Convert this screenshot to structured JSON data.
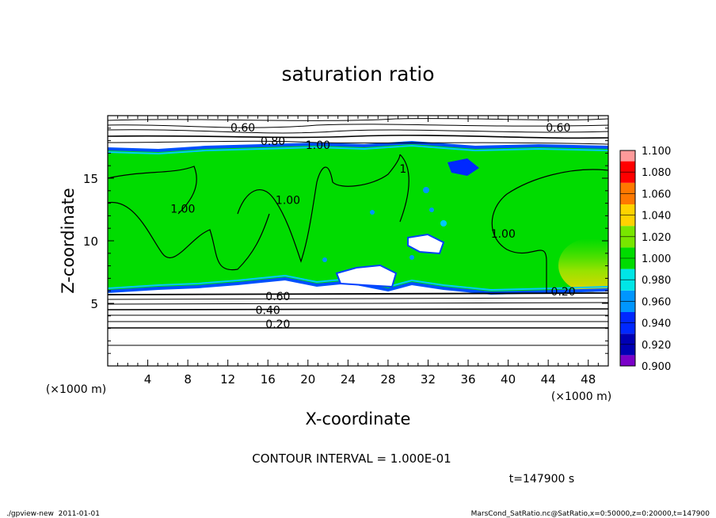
{
  "chart_data": {
    "type": "heatmap",
    "title": "saturation ratio",
    "xlabel": "X-coordinate",
    "ylabel": "Z-coordinate",
    "x_unit": "(×1000 m)",
    "y_unit": "(×1000 m)",
    "xlim": [
      0,
      50
    ],
    "ylim": [
      0,
      20
    ],
    "x_ticks": [
      "4",
      "8",
      "12",
      "16",
      "20",
      "24",
      "28",
      "32",
      "36",
      "40",
      "44",
      "48"
    ],
    "y_ticks": [
      "5",
      "10",
      "15"
    ],
    "colorbar": {
      "levels": [
        "0.900",
        "0.920",
        "0.940",
        "0.960",
        "0.980",
        "1.000",
        "1.020",
        "1.040",
        "1.060",
        "1.080",
        "1.100"
      ],
      "colors": [
        "#7a00c8",
        "#0000b4",
        "#0028ff",
        "#0096ff",
        "#00e6e6",
        "#00dc00",
        "#78e600",
        "#ffd200",
        "#ff7800",
        "#ff0000",
        "#ff9a9a"
      ]
    },
    "contour_labels": [
      {
        "text": "0.60",
        "x": 13.5,
        "z": 19.0
      },
      {
        "text": "0.80",
        "x": 16.5,
        "z": 17.9
      },
      {
        "text": "1.00",
        "x": 21.0,
        "z": 17.6
      },
      {
        "text": "0.60",
        "x": 45.0,
        "z": 19.0
      },
      {
        "text": "1.00",
        "x": 7.5,
        "z": 12.5
      },
      {
        "text": "1.00",
        "x": 18.0,
        "z": 13.2
      },
      {
        "text": "1.00",
        "x": 39.5,
        "z": 10.5
      },
      {
        "text": "1",
        "x": 29.5,
        "z": 15.7
      },
      {
        "text": "0.60",
        "x": 17.0,
        "z": 5.5
      },
      {
        "text": "0.40",
        "x": 16.0,
        "z": 4.4
      },
      {
        "text": "0.20",
        "x": 17.0,
        "z": 3.3
      },
      {
        "text": "0.20",
        "x": 45.5,
        "z": 5.9
      }
    ],
    "contour_interval_text": "CONTOUR INTERVAL = 1.000E-01"
  },
  "time_label": "t=147900 s",
  "footer": {
    "left": "./gpview-new  2011-01-01",
    "right": "MarsCond_SatRatio.nc@SatRatio,x=0:50000,z=0:20000,t=147900"
  }
}
